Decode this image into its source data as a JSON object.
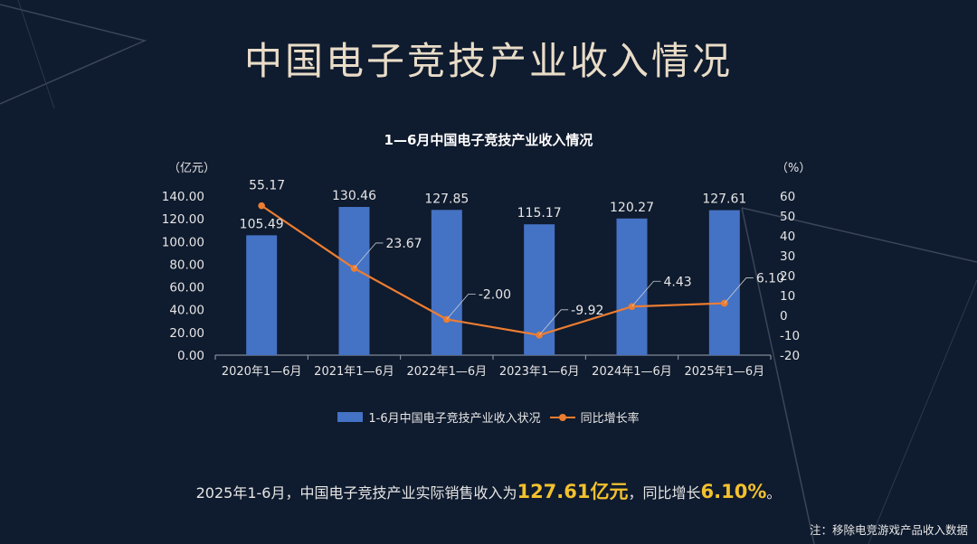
{
  "page": {
    "title": "中国电子竞技产业收入情况",
    "summary": {
      "prefix": "2025年1-6月，中国电子竞技产业实际销售收入为",
      "revenue": "127.61亿元",
      "middle": "，同比增长",
      "growth": "6.10%",
      "suffix": "。"
    },
    "note": "注：移除电竞游戏产品收入数据"
  },
  "colors": {
    "background": "#0f1b2e",
    "bar": "#4472c4",
    "line": "#ed7d31",
    "highlight": "#f2c12e",
    "title": "#e9dcc8"
  },
  "chart_data": {
    "type": "bar",
    "title": "1—6月中国电子竞技产业收入情况",
    "y_unit_left": "（亿元）",
    "y_unit_right": "（%）",
    "categories": [
      "2020年1—6月",
      "2021年1—6月",
      "2022年1—6月",
      "2023年1—6月",
      "2024年1—6月",
      "2025年1—6月"
    ],
    "ylim_left": [
      0,
      140
    ],
    "yticks_left": [
      "0.00",
      "20.00",
      "40.00",
      "60.00",
      "80.00",
      "100.00",
      "120.00",
      "140.00"
    ],
    "ylim_right": [
      -20,
      60
    ],
    "yticks_right": [
      "-20",
      "-10",
      "0",
      "10",
      "20",
      "30",
      "40",
      "50",
      "60"
    ],
    "grid": false,
    "legend_position": "bottom",
    "series": [
      {
        "name": "1-6月中国电子竞技产业收入状况",
        "type": "bar",
        "axis": "left",
        "values": [
          105.49,
          130.46,
          127.85,
          115.17,
          120.27,
          127.61
        ],
        "labels": [
          "105.49",
          "130.46",
          "127.85",
          "115.17",
          "120.27",
          "127.61"
        ]
      },
      {
        "name": "同比增长率",
        "type": "line",
        "axis": "right",
        "values": [
          55.17,
          23.67,
          -2.0,
          -9.92,
          4.43,
          6.1
        ],
        "labels": [
          "55.17",
          "23.67",
          "-2.00",
          "-9.92",
          "4.43",
          "6.10"
        ]
      }
    ]
  }
}
